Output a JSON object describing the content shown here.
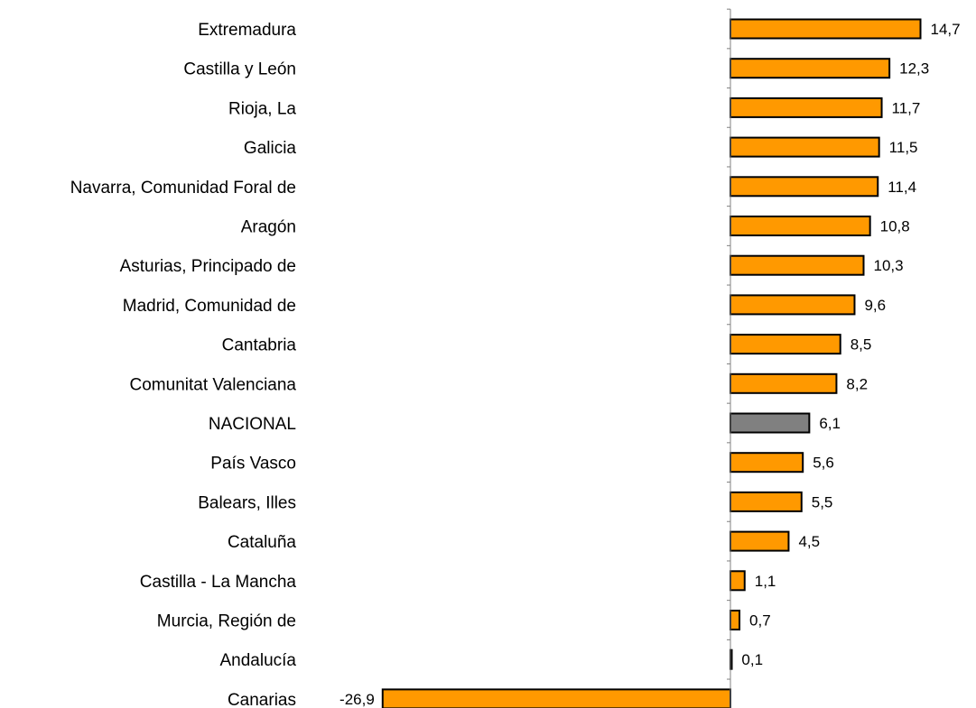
{
  "chart_data": {
    "type": "bar",
    "orientation": "horizontal",
    "title": "",
    "xlabel": "",
    "ylabel": "",
    "categories": [
      "Extremadura",
      "Castilla y León",
      "Rioja, La",
      "Galicia",
      "Navarra, Comunidad Foral de",
      "Aragón",
      "Asturias, Principado de",
      "Madrid, Comunidad de",
      "Cantabria",
      "Comunitat Valenciana",
      "NACIONAL",
      "País Vasco",
      "Balears, Illes",
      "Cataluña",
      "Castilla - La Mancha",
      "Murcia, Región de",
      "Andalucía",
      "Canarias"
    ],
    "values": [
      14.7,
      12.3,
      11.7,
      11.5,
      11.4,
      10.8,
      10.3,
      9.6,
      8.5,
      8.2,
      6.1,
      5.6,
      5.5,
      4.5,
      1.1,
      0.7,
      0.1,
      -26.9
    ],
    "value_labels": [
      "14,7",
      "12,3",
      "11,7",
      "11,5",
      "11,4",
      "10,8",
      "10,3",
      "9,6",
      "8,5",
      "8,2",
      "6,1",
      "5,6",
      "5,5",
      "4,5",
      "1,1",
      "0,7",
      "0,1",
      "-26,9"
    ],
    "highlight_category": "NACIONAL",
    "colors": {
      "bar": "#ff9900",
      "highlight": "#808080",
      "stroke": "#000000",
      "axis": "#808080"
    },
    "grid": false,
    "legend": "none"
  }
}
